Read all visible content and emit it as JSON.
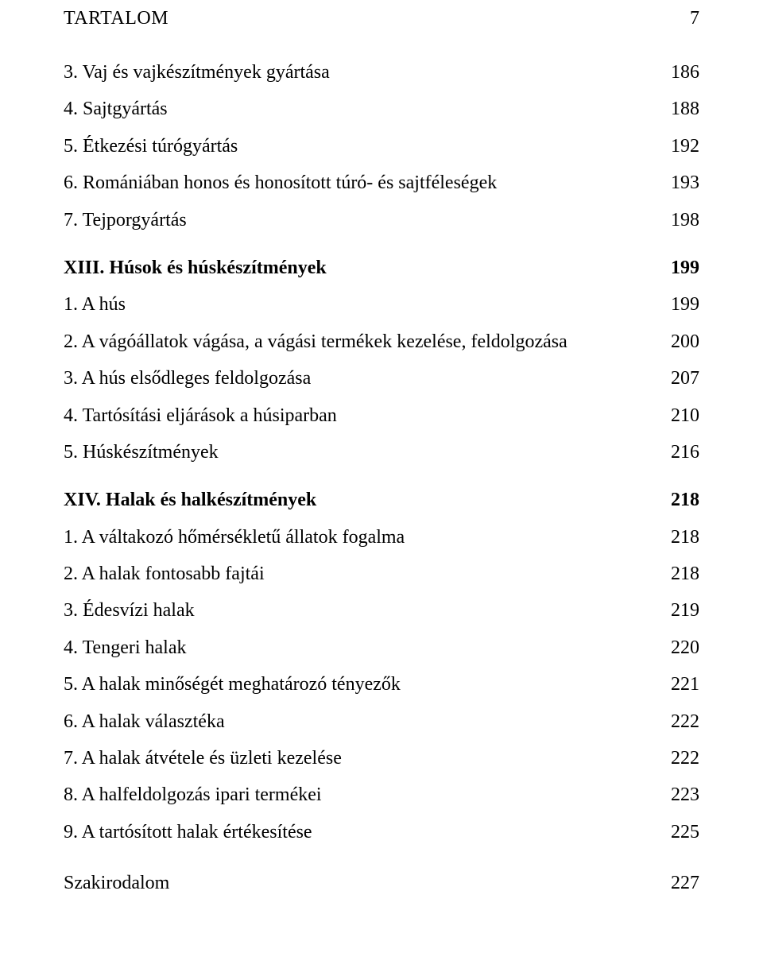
{
  "header": {
    "title": "TARTALOM",
    "page": "7"
  },
  "toc": [
    {
      "label": "3. Vaj és vajkészítmények gyártása",
      "page": "186",
      "chapter": false
    },
    {
      "label": "4. Sajtgyártás",
      "page": "188",
      "chapter": false
    },
    {
      "label": "5. Étkezési túrógyártás",
      "page": "192",
      "chapter": false
    },
    {
      "label": "6. Romániában honos és honosított túró- és sajtféleségek",
      "page": "193",
      "chapter": false
    },
    {
      "label": "7. Tejporgyártás",
      "page": "198",
      "chapter": false
    },
    {
      "label": "XIII. Húsok és húskészítmények",
      "page": "199",
      "chapter": true,
      "gap": true
    },
    {
      "label": "1. A hús",
      "page": "199",
      "chapter": false
    },
    {
      "label": "2. A vágóállatok vágása, a vágási termékek kezelése, feldolgozása",
      "page": "200",
      "chapter": false
    },
    {
      "label": "3. A hús elsődleges feldolgozása",
      "page": "207",
      "chapter": false
    },
    {
      "label": "4. Tartósítási eljárások a húsiparban",
      "page": "210",
      "chapter": false
    },
    {
      "label": "5. Húskészítmények",
      "page": "216",
      "chapter": false
    },
    {
      "label": "XIV. Halak és halkészítmények",
      "page": "218",
      "chapter": true,
      "gap": true
    },
    {
      "label": "1. A váltakozó hőmérsékletű állatok fogalma",
      "page": "218",
      "chapter": false
    },
    {
      "label": "2. A halak fontosabb fajtái",
      "page": "218",
      "chapter": false
    },
    {
      "label": "3. Édesvízi halak",
      "page": "219",
      "chapter": false
    },
    {
      "label": "4. Tengeri halak",
      "page": "220",
      "chapter": false
    },
    {
      "label": "5. A halak minőségét meghatározó tényezők",
      "page": "221",
      "chapter": false
    },
    {
      "label": "6. A halak választéka",
      "page": "222",
      "chapter": false
    },
    {
      "label": "7. A halak átvétele és üzleti kezelése",
      "page": "222",
      "chapter": false
    },
    {
      "label": "8. A halfeldolgozás ipari termékei",
      "page": "223",
      "chapter": false
    },
    {
      "label": "9. A tartósított halak értékesítése",
      "page": "225",
      "chapter": false
    },
    {
      "label": "Szakirodalom",
      "page": "227",
      "chapter": false,
      "finalgap": true
    }
  ]
}
